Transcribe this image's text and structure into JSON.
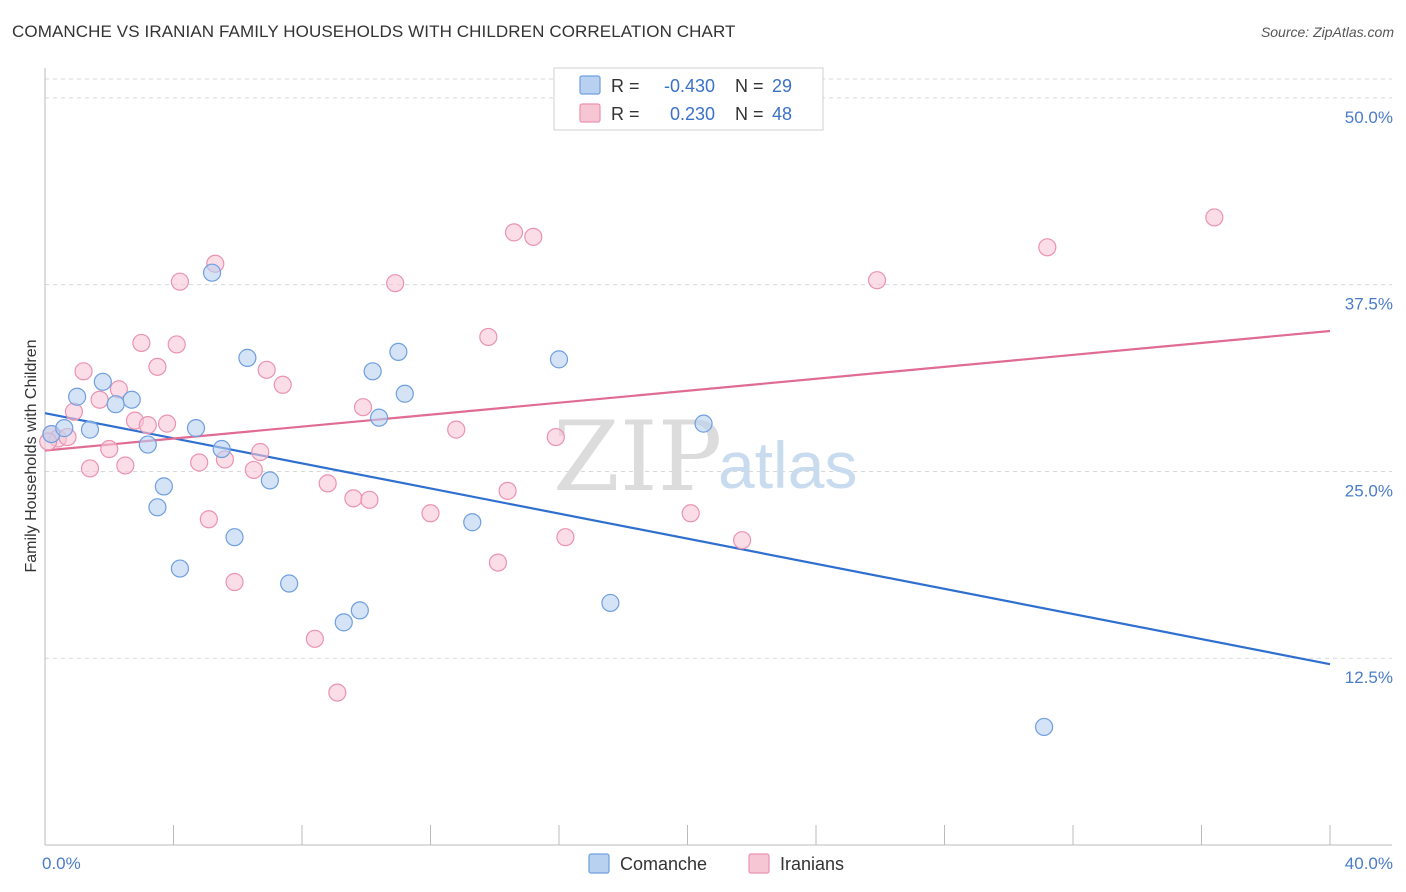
{
  "title": "COMANCHE VS IRANIAN FAMILY HOUSEHOLDS WITH CHILDREN CORRELATION CHART",
  "source": "Source: ZipAtlas.com",
  "watermark": {
    "zip": "ZIP",
    "atlas": "atlas"
  },
  "colors": {
    "comanche_fill": "#b8d1f0",
    "comanche_stroke": "#6f9fe0",
    "comanche_line": "#2f6fd0",
    "iranians_fill": "#f7c6d5",
    "iranians_stroke": "#eb93b0",
    "iranians_line": "#e06b93",
    "grid": "#d8d8d8",
    "axis_text": "#4a7cc9"
  },
  "legend": {
    "rows": [
      {
        "r_label": "R = ",
        "r_value": "-0.430",
        "n_label": "N = ",
        "n_value": "29"
      },
      {
        "r_label": "R = ",
        "r_value": "0.230",
        "n_label": "N = ",
        "n_value": "48"
      }
    ]
  },
  "chart_data": {
    "type": "scatter",
    "title": "COMANCHE VS IRANIAN FAMILY HOUSEHOLDS WITH CHILDREN CORRELATION CHART",
    "xlabel": "",
    "ylabel": "Family Households with Children",
    "xlim": [
      0,
      40
    ],
    "ylim": [
      0,
      52
    ],
    "x_ticks": [
      0,
      4,
      8,
      12,
      16,
      20,
      24,
      28,
      32,
      36,
      40
    ],
    "x_tick_labels": {
      "0": "0.0%",
      "40": "40.0%"
    },
    "y_ticks": [
      12.5,
      25.0,
      37.5,
      50.0
    ],
    "y_tick_labels": [
      "12.5%",
      "25.0%",
      "37.5%",
      "50.0%"
    ],
    "grid": true,
    "series": [
      {
        "name": "Comanche",
        "r": -0.43,
        "n": 29,
        "trend": {
          "x": [
            0,
            40
          ],
          "y": [
            28.9,
            12.1
          ]
        },
        "points": [
          [
            0.2,
            27.5
          ],
          [
            0.6,
            27.9
          ],
          [
            1.0,
            30.0
          ],
          [
            1.4,
            27.8
          ],
          [
            1.8,
            31.0
          ],
          [
            2.2,
            29.5
          ],
          [
            2.7,
            29.8
          ],
          [
            3.2,
            26.8
          ],
          [
            3.5,
            22.6
          ],
          [
            3.7,
            24.0
          ],
          [
            4.2,
            18.5
          ],
          [
            4.7,
            27.9
          ],
          [
            5.2,
            38.3
          ],
          [
            5.5,
            26.5
          ],
          [
            5.9,
            20.6
          ],
          [
            6.3,
            32.6
          ],
          [
            7.0,
            24.4
          ],
          [
            7.6,
            17.5
          ],
          [
            9.3,
            14.9
          ],
          [
            9.8,
            15.7
          ],
          [
            10.2,
            31.7
          ],
          [
            10.4,
            28.6
          ],
          [
            11.0,
            33.0
          ],
          [
            11.2,
            30.2
          ],
          [
            13.3,
            21.6
          ],
          [
            16.0,
            32.5
          ],
          [
            17.6,
            16.2
          ],
          [
            20.5,
            28.2
          ],
          [
            31.1,
            7.9
          ]
        ]
      },
      {
        "name": "Iranians",
        "r": 0.23,
        "n": 48,
        "trend": {
          "x": [
            0,
            40
          ],
          "y": [
            26.4,
            34.4
          ]
        },
        "points": [
          [
            0.2,
            27.5
          ],
          [
            0.4,
            27.2
          ],
          [
            0.7,
            27.3
          ],
          [
            0.9,
            29.0
          ],
          [
            1.2,
            31.7
          ],
          [
            1.4,
            25.2
          ],
          [
            1.7,
            29.8
          ],
          [
            2.0,
            26.5
          ],
          [
            2.3,
            30.5
          ],
          [
            2.5,
            25.4
          ],
          [
            2.8,
            28.4
          ],
          [
            3.0,
            33.6
          ],
          [
            3.2,
            28.1
          ],
          [
            3.5,
            32.0
          ],
          [
            3.8,
            28.2
          ],
          [
            4.1,
            33.5
          ],
          [
            4.2,
            37.7
          ],
          [
            4.8,
            25.6
          ],
          [
            5.1,
            21.8
          ],
          [
            5.3,
            38.9
          ],
          [
            5.6,
            25.8
          ],
          [
            5.9,
            17.6
          ],
          [
            6.5,
            25.1
          ],
          [
            6.7,
            26.3
          ],
          [
            6.9,
            31.8
          ],
          [
            7.4,
            30.8
          ],
          [
            8.4,
            13.8
          ],
          [
            8.8,
            24.2
          ],
          [
            9.1,
            10.2
          ],
          [
            9.6,
            23.2
          ],
          [
            9.9,
            29.3
          ],
          [
            10.1,
            23.1
          ],
          [
            10.9,
            37.6
          ],
          [
            12.0,
            22.2
          ],
          [
            12.8,
            27.8
          ],
          [
            13.8,
            34.0
          ],
          [
            14.1,
            18.9
          ],
          [
            14.4,
            23.7
          ],
          [
            14.6,
            41.0
          ],
          [
            15.2,
            40.7
          ],
          [
            15.9,
            27.3
          ],
          [
            16.2,
            20.6
          ],
          [
            20.1,
            22.2
          ],
          [
            21.7,
            20.4
          ],
          [
            25.9,
            37.8
          ],
          [
            31.2,
            40.0
          ],
          [
            36.4,
            42.0
          ],
          [
            0.1,
            27.0
          ]
        ]
      }
    ]
  },
  "bottom_legend": [
    "Comanche",
    "Iranians"
  ]
}
